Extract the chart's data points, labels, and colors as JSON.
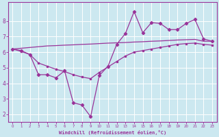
{
  "xlabel": "Windchill (Refroidissement éolien,°C)",
  "bg_color": "#cce8f0",
  "line_color": "#993399",
  "x_values": [
    0,
    1,
    2,
    3,
    4,
    5,
    6,
    7,
    8,
    9,
    10,
    11,
    12,
    13,
    14,
    15,
    16,
    17,
    18,
    19,
    20,
    21,
    22,
    23
  ],
  "windchill": [
    6.2,
    6.1,
    5.85,
    4.55,
    4.55,
    4.35,
    4.8,
    2.75,
    2.6,
    1.85,
    4.5,
    5.1,
    6.5,
    7.2,
    8.6,
    7.25,
    7.9,
    7.85,
    7.45,
    7.45,
    7.85,
    8.1,
    6.85,
    6.7
  ],
  "trend_up": [
    6.2,
    6.25,
    6.3,
    6.35,
    6.4,
    6.42,
    6.45,
    6.47,
    6.5,
    6.52,
    6.55,
    6.58,
    6.6,
    6.62,
    6.65,
    6.67,
    6.7,
    6.72,
    6.75,
    6.78,
    6.8,
    6.82,
    6.7,
    6.7
  ],
  "trend_down": [
    6.2,
    6.05,
    5.85,
    5.3,
    5.1,
    4.9,
    4.75,
    4.55,
    4.4,
    4.3,
    4.7,
    5.05,
    5.4,
    5.75,
    6.0,
    6.1,
    6.2,
    6.3,
    6.4,
    6.5,
    6.55,
    6.58,
    6.5,
    6.45
  ],
  "ylim": [
    1.5,
    9.2
  ],
  "xlim": [
    -0.5,
    23.5
  ],
  "yticks": [
    2,
    3,
    4,
    5,
    6,
    7,
    8
  ],
  "xticks": [
    0,
    1,
    2,
    3,
    4,
    5,
    6,
    7,
    8,
    9,
    10,
    11,
    12,
    13,
    14,
    15,
    16,
    17,
    18,
    19,
    20,
    21,
    22,
    23
  ]
}
